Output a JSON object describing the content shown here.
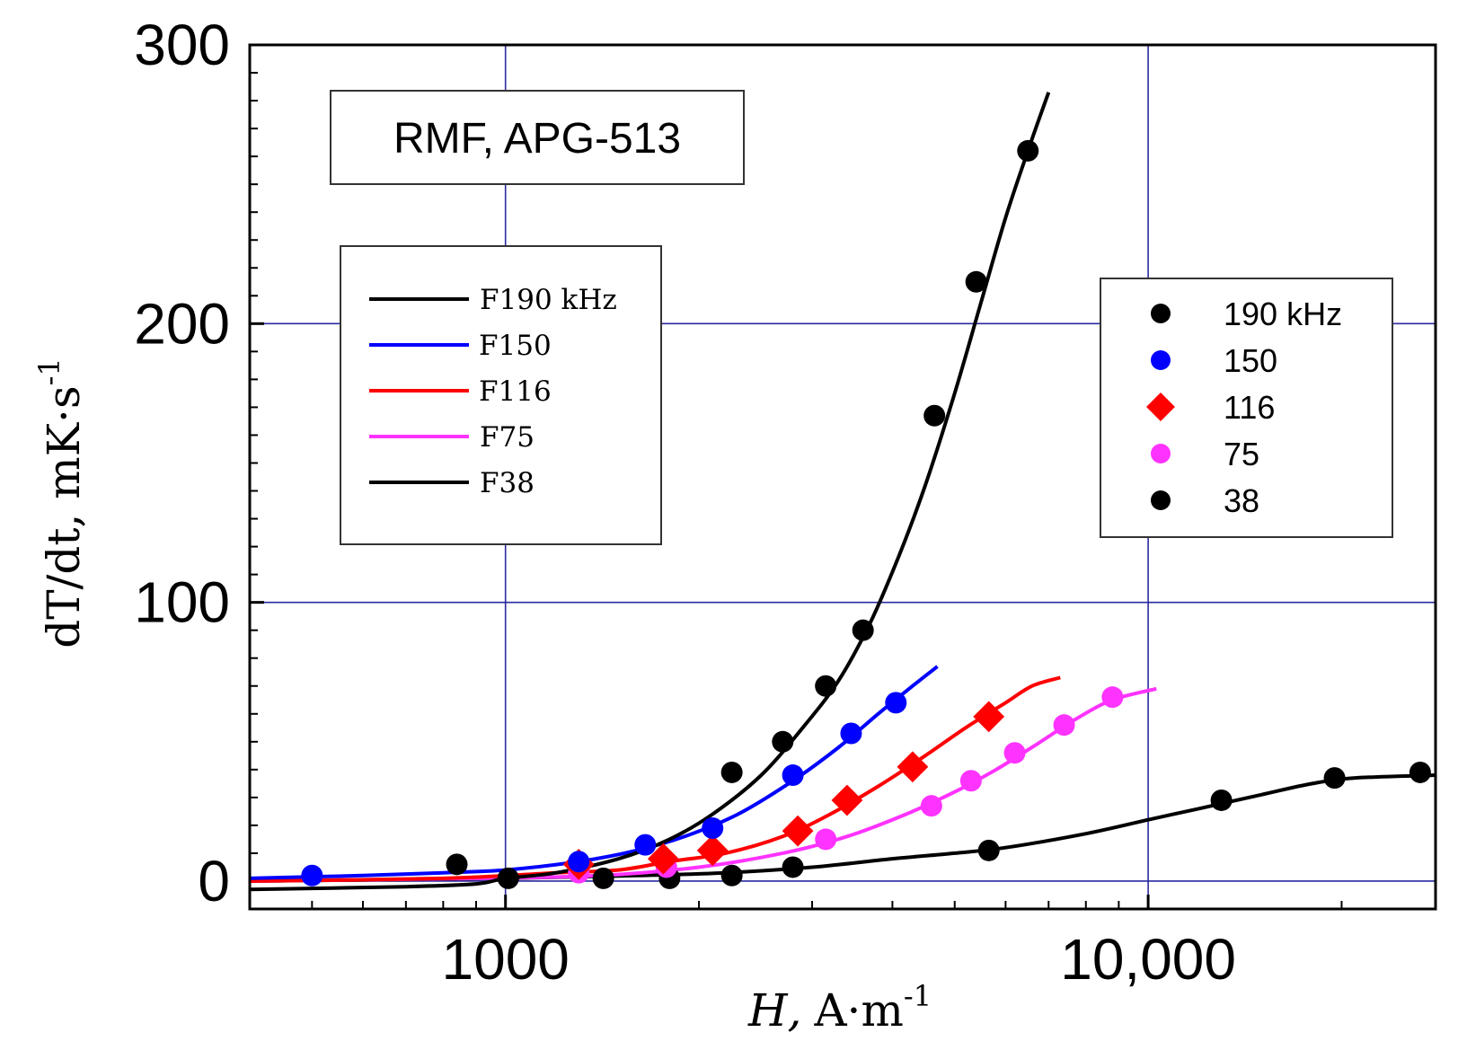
{
  "chart_data": {
    "type": "scatter",
    "title": "RMF, APG-513",
    "xlabel_italic": "H,",
    "xlabel_unit": "A·m",
    "xlabel_exp": "-1",
    "ylabel_text": "dT/dt, mK·s",
    "ylabel_exp": "-1",
    "x_scale": "log",
    "xlim": [
      400,
      28000
    ],
    "ylim": [
      -10,
      300
    ],
    "grid": true,
    "x_ticks": [
      {
        "value": 1000,
        "label": "1000"
      },
      {
        "value": 10000,
        "label": "10,000"
      }
    ],
    "y_ticks": [
      {
        "value": 0,
        "label": "0"
      },
      {
        "value": 100,
        "label": "100"
      },
      {
        "value": 200,
        "label": "200"
      },
      {
        "value": 300,
        "label": "300"
      }
    ],
    "fit_legend": [
      {
        "label": "F190 kHz",
        "color": "#000000"
      },
      {
        "label": "F150",
        "color": "#0000ff"
      },
      {
        "label": "F116",
        "color": "#ff0000"
      },
      {
        "label": "F75",
        "color": "#ff33ff"
      },
      {
        "label": "F38",
        "color": "#000000"
      }
    ],
    "marker_legend": [
      {
        "label": "190  kHz",
        "color": "#000000",
        "marker": "circle"
      },
      {
        "label": "150",
        "color": "#0000ff",
        "marker": "circle"
      },
      {
        "label": "116",
        "color": "#ff0000",
        "marker": "diamond"
      },
      {
        "label": "75",
        "color": "#ff33ff",
        "marker": "circle"
      },
      {
        "label": "38",
        "color": "#000000",
        "marker": "circle"
      }
    ],
    "series": [
      {
        "name": "190 kHz",
        "color": "#000000",
        "marker": "circle",
        "points": [
          [
            840,
            6
          ],
          [
            1010,
            1
          ],
          [
            2250,
            39
          ],
          [
            2700,
            50
          ],
          [
            3150,
            70
          ],
          [
            3600,
            90
          ],
          [
            4650,
            167
          ],
          [
            5400,
            215
          ],
          [
            6500,
            262
          ]
        ],
        "fit": [
          [
            400,
            -3
          ],
          [
            700,
            -2
          ],
          [
            900,
            -1
          ],
          [
            1000,
            1
          ],
          [
            1200,
            3
          ],
          [
            1500,
            8
          ],
          [
            1800,
            15
          ],
          [
            2100,
            24
          ],
          [
            2500,
            38
          ],
          [
            2900,
            55
          ],
          [
            3300,
            72
          ],
          [
            3700,
            93
          ],
          [
            4100,
            117
          ],
          [
            4500,
            142
          ],
          [
            5000,
            175
          ],
          [
            5500,
            208
          ],
          [
            6000,
            238
          ],
          [
            6500,
            262
          ],
          [
            7000,
            283
          ]
        ]
      },
      {
        "name": "150",
        "color": "#0000ff",
        "marker": "circle",
        "points": [
          [
            500,
            2
          ],
          [
            1300,
            7
          ],
          [
            1650,
            13
          ],
          [
            2100,
            19
          ],
          [
            2800,
            38
          ],
          [
            3450,
            53
          ],
          [
            4050,
            64
          ]
        ],
        "fit": [
          [
            400,
            1
          ],
          [
            600,
            2
          ],
          [
            800,
            3
          ],
          [
            1000,
            4
          ],
          [
            1300,
            7
          ],
          [
            1600,
            11
          ],
          [
            1900,
            16
          ],
          [
            2300,
            24
          ],
          [
            2800,
            36
          ],
          [
            3300,
            48
          ],
          [
            3800,
            60
          ],
          [
            4300,
            70
          ],
          [
            4700,
            77
          ]
        ]
      },
      {
        "name": "116",
        "color": "#ff0000",
        "marker": "diamond",
        "points": [
          [
            1300,
            6
          ],
          [
            1760,
            8
          ],
          [
            2100,
            11
          ],
          [
            2850,
            18
          ],
          [
            3400,
            29
          ],
          [
            4300,
            41
          ],
          [
            5650,
            59
          ]
        ],
        "fit": [
          [
            400,
            0
          ],
          [
            800,
            1
          ],
          [
            1200,
            3
          ],
          [
            1500,
            4
          ],
          [
            1800,
            7
          ],
          [
            2200,
            10
          ],
          [
            2700,
            16
          ],
          [
            3200,
            24
          ],
          [
            3800,
            34
          ],
          [
            4500,
            45
          ],
          [
            5200,
            55
          ],
          [
            6000,
            64
          ],
          [
            6600,
            70
          ],
          [
            7300,
            73
          ]
        ]
      },
      {
        "name": "75",
        "color": "#ff33ff",
        "marker": "circle",
        "points": [
          [
            1300,
            3
          ],
          [
            1780,
            5
          ],
          [
            3150,
            15
          ],
          [
            4600,
            27
          ],
          [
            5300,
            36
          ],
          [
            6200,
            46
          ],
          [
            7400,
            56
          ],
          [
            8800,
            66
          ]
        ],
        "fit": [
          [
            400,
            0
          ],
          [
            900,
            1
          ],
          [
            1400,
            2
          ],
          [
            2000,
            5
          ],
          [
            2700,
            10
          ],
          [
            3400,
            16
          ],
          [
            4200,
            24
          ],
          [
            5000,
            32
          ],
          [
            5800,
            40
          ],
          [
            6700,
            49
          ],
          [
            7700,
            58
          ],
          [
            8800,
            65
          ],
          [
            10300,
            69
          ]
        ]
      },
      {
        "name": "38",
        "color": "#000000",
        "marker": "circle",
        "points": [
          [
            1420,
            1
          ],
          [
            1800,
            1
          ],
          [
            2250,
            2
          ],
          [
            2800,
            5
          ],
          [
            5650,
            11
          ],
          [
            13000,
            29
          ],
          [
            19500,
            37
          ],
          [
            26500,
            39
          ]
        ],
        "fit": [
          [
            400,
            0
          ],
          [
            1000,
            1
          ],
          [
            1600,
            2
          ],
          [
            2200,
            3
          ],
          [
            3000,
            5
          ],
          [
            4000,
            8
          ],
          [
            5000,
            10
          ],
          [
            6000,
            12
          ],
          [
            8000,
            17
          ],
          [
            10000,
            22
          ],
          [
            12000,
            26
          ],
          [
            15000,
            31
          ],
          [
            18000,
            35
          ],
          [
            21000,
            37
          ],
          [
            28000,
            38
          ]
        ]
      }
    ]
  }
}
